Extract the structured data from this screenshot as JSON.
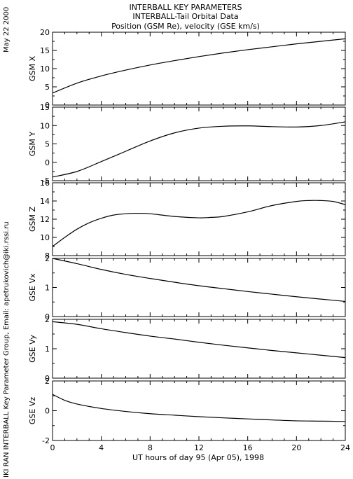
{
  "header": {
    "title_line1": "INTERBALL KEY PARAMETERS",
    "title_line2": "INTERBALL-Tail Orbital Data",
    "title_line3": "Position (GSM Re), velocity (GSE km/s)"
  },
  "side_left": {
    "date": "May 22 2000",
    "credit": "IKI RAN INTERBALL Key Parameter Group, Email: apetrukovich@iki.rssi.ru"
  },
  "xaxis": {
    "label": "UT hours of day  95 (Apr 05), 1998",
    "ticks": [
      "0",
      "4",
      "8",
      "12",
      "16",
      "20",
      "24"
    ],
    "range": [
      0,
      24
    ]
  },
  "chart_data": [
    {
      "type": "line",
      "ylabel": "GSM X",
      "ylim": [
        0,
        20
      ],
      "yticks": [
        "0",
        "5",
        "10",
        "15",
        "20"
      ],
      "x": [
        0,
        2,
        4,
        6,
        8,
        10,
        12,
        14,
        16,
        18,
        20,
        22,
        24
      ],
      "values": [
        3.3,
        6.0,
        8.0,
        9.6,
        11.0,
        12.2,
        13.3,
        14.3,
        15.2,
        16.0,
        16.8,
        17.5,
        18.2
      ]
    },
    {
      "type": "line",
      "ylabel": "GSM Y",
      "ylim": [
        -5,
        15
      ],
      "yticks": [
        "-5",
        "0",
        "5",
        "10",
        "15"
      ],
      "x": [
        0,
        2,
        4,
        6,
        8,
        10,
        12,
        14,
        16,
        18,
        20,
        22,
        24
      ],
      "values": [
        -4.0,
        -2.5,
        0.2,
        3.0,
        5.8,
        8.0,
        9.3,
        9.8,
        9.9,
        9.7,
        9.6,
        10.0,
        11.0
      ]
    },
    {
      "type": "line",
      "ylabel": "GSM Z",
      "ylim": [
        8,
        16
      ],
      "yticks": [
        "8",
        "10",
        "12",
        "14",
        "16"
      ],
      "x": [
        0,
        1,
        2,
        3,
        4,
        5,
        6,
        7,
        8,
        10,
        12,
        13,
        14,
        16,
        18,
        20,
        21,
        22,
        23,
        24
      ],
      "values": [
        9.0,
        10.0,
        10.9,
        11.6,
        12.1,
        12.45,
        12.6,
        12.65,
        12.6,
        12.3,
        12.15,
        12.2,
        12.3,
        12.8,
        13.5,
        13.95,
        14.05,
        14.05,
        13.95,
        13.6
      ]
    },
    {
      "type": "line",
      "ylabel": "GSE Vx",
      "ylim": [
        0,
        2
      ],
      "yticks": [
        "0",
        "1",
        "2"
      ],
      "x": [
        0,
        2,
        4,
        6,
        8,
        10,
        12,
        14,
        16,
        18,
        20,
        22,
        24
      ],
      "values": [
        2.0,
        1.82,
        1.62,
        1.45,
        1.31,
        1.18,
        1.06,
        0.96,
        0.86,
        0.77,
        0.68,
        0.6,
        0.52
      ]
    },
    {
      "type": "line",
      "ylabel": "GSE Vy",
      "ylim": [
        0,
        2
      ],
      "yticks": [
        "0",
        "1",
        "2"
      ],
      "x": [
        0,
        2,
        4,
        6,
        8,
        10,
        12,
        14,
        16,
        18,
        20,
        22,
        24
      ],
      "values": [
        1.92,
        1.83,
        1.68,
        1.55,
        1.43,
        1.33,
        1.22,
        1.12,
        1.03,
        0.94,
        0.86,
        0.78,
        0.7
      ]
    },
    {
      "type": "line",
      "ylabel": "GSE Vz",
      "ylim": [
        -2,
        2
      ],
      "yticks": [
        "-2",
        "0",
        "2"
      ],
      "x": [
        0,
        1,
        2,
        4,
        6,
        8,
        10,
        12,
        14,
        16,
        18,
        20,
        22,
        24
      ],
      "values": [
        1.1,
        0.7,
        0.45,
        0.15,
        -0.05,
        -0.2,
        -0.3,
        -0.4,
        -0.48,
        -0.55,
        -0.62,
        -0.68,
        -0.7,
        -0.72
      ]
    }
  ]
}
